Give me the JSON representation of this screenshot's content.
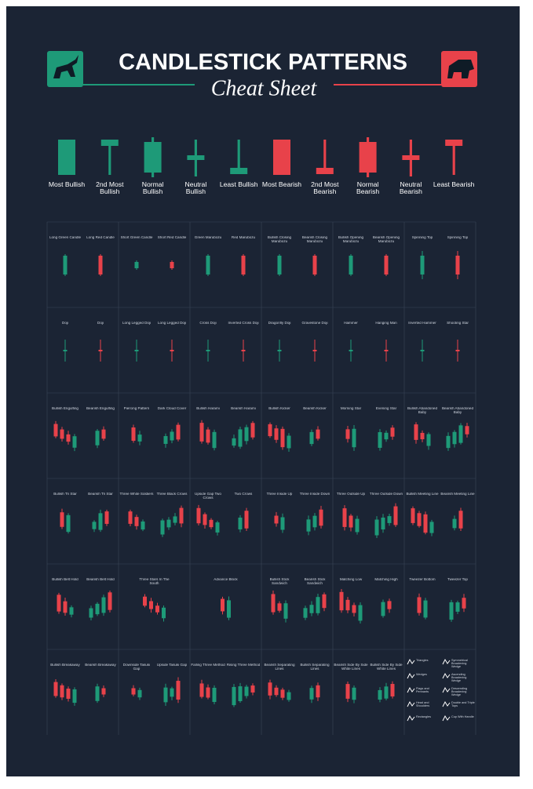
{
  "header": {
    "title": "CANDLESTICK PATTERNS",
    "subtitle": "Cheat Sheet"
  },
  "legend": [
    "Most Bullish",
    "2nd Most Bullish",
    "Normal Bullish",
    "Neutral Bullish",
    "Least Bullish",
    "Most Bearish",
    "2nd Most Bearish",
    "Normal Bearish",
    "Neutral Bearish",
    "Least Bearish"
  ],
  "grid": {
    "rows": [
      [
        [
          "Long Green Candle",
          "Long Red Candle"
        ],
        [
          "Short Green Candle",
          "Short Red Candle"
        ],
        [
          "Green Marubozu",
          "Red Marubozu"
        ],
        [
          "Bullish Closing Marubozu",
          "Bearish Closing Marubozu"
        ],
        [
          "Bullish Opening Marubozu",
          "Bearish Opening Marubozu"
        ],
        [
          "Spinning Top",
          "Spinning Top"
        ]
      ],
      [
        [
          "Doji",
          "Doji"
        ],
        [
          "Long Legged Doji",
          "Long Legged Doji"
        ],
        [
          "Cross Doji",
          "Inverted Cross Doji"
        ],
        [
          "Dragonfly Doji",
          "Gravestone Doji"
        ],
        [
          "Hammer",
          "Hanging Man"
        ],
        [
          "Inverted Hammer",
          "Shooting Star"
        ]
      ],
      [
        [
          "Bullish Engulfing",
          "Bearish Engulfing"
        ],
        [
          "Piercing Pattern",
          "Dark Cloud Cover"
        ],
        [
          "Bullish Harami",
          "Bearish Harami"
        ],
        [
          "Bullish Kicker",
          "Bearish Kicker"
        ],
        [
          "Morning Star",
          "Evening Star"
        ],
        [
          "Bullish Abandoned Baby",
          "Bearish Abandoned Baby"
        ]
      ],
      [
        [
          "Bullish Tri Star",
          "Bearish Tri Star"
        ],
        [
          "Three White Soldiers",
          "Three Black Crows"
        ],
        [
          "Upside Gap Two Crows",
          "Two Crows"
        ],
        [
          "Three Inside Up",
          "Three Inside Down"
        ],
        [
          "Three Outside Up",
          "Three Outside Down"
        ],
        [
          "Bullish Meeting Line",
          "Bearish Meeting Line"
        ]
      ],
      [
        [
          "Bullish Belt Hold",
          "Bearish Belt Hold"
        ],
        [
          "Three Stars In The South"
        ],
        [
          "Advance Block"
        ],
        [
          "Bullish Stick Sandwich",
          "Bearish Stick Sandwich"
        ],
        [
          "Matching Low",
          "Matching High"
        ],
        [
          "Tweezer Bottom",
          "Tweezer Top"
        ]
      ],
      [
        [
          "Bullish Breakaway",
          "Bearish Breakaway"
        ],
        [
          "Downside Tasuki Gap",
          "Upside Tasuki Gap"
        ],
        [
          "Falling Three Method",
          "Rising Three Method"
        ],
        [
          "Bearish Separating Lines",
          "Bullish Separating Lines"
        ],
        [
          "Bearish Side By Side White Lines",
          "Bullish Side By Side White Lines"
        ],
        [
          "Triangles",
          "Symmetrical Broadening Wedge",
          "Wedges",
          "Ascending Broadening Wedge",
          "Flags and Pennants",
          "Descending Broadening Wedge",
          "Head and Shoulders",
          "Double and Triple Tops",
          "Rectangles",
          "Cup With Handle"
        ]
      ]
    ]
  }
}
